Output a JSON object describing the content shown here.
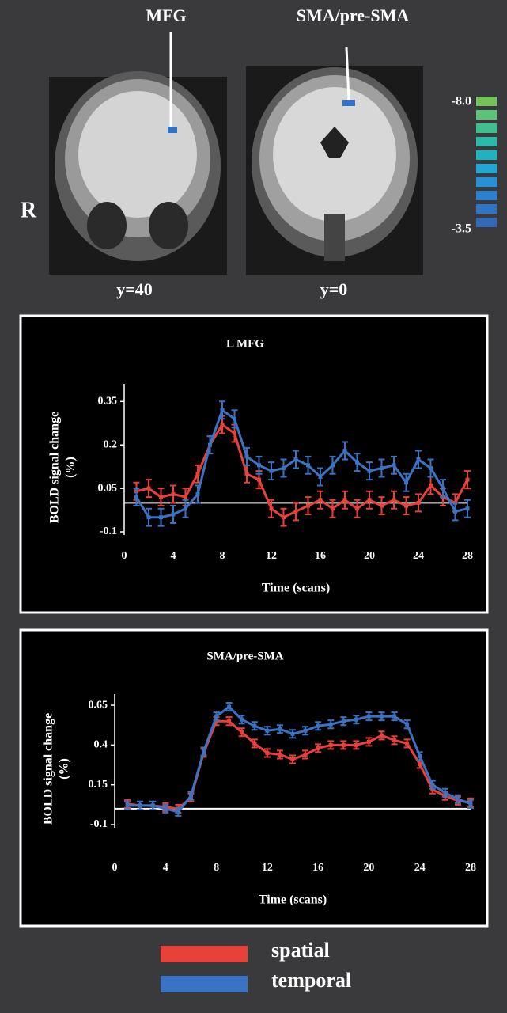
{
  "panel_labels": {
    "mfg": "MFG",
    "sma": "SMA/pre-SMA",
    "side": "R",
    "slice1": "y=40",
    "slice2": "y=0"
  },
  "colorbar": {
    "max_label": "-8.0",
    "min_label": "-3.5",
    "colors": [
      "#72c45a",
      "#5cc47a",
      "#3fbf8f",
      "#2bb9a8",
      "#1fb3c2",
      "#22a6d6",
      "#2791d8",
      "#2d80d0",
      "#3174c4",
      "#3469b8"
    ]
  },
  "chart_data": [
    {
      "type": "line",
      "title": "L MFG",
      "ylabel": [
        "BOLD signal change",
        "(%)"
      ],
      "xlabel": "Time (scans)",
      "x": [
        1,
        2,
        3,
        4,
        5,
        6,
        7,
        8,
        9,
        10,
        11,
        12,
        13,
        14,
        15,
        16,
        17,
        18,
        19,
        20,
        21,
        22,
        23,
        24,
        25,
        26,
        27,
        28
      ],
      "xlim": [
        0,
        28
      ],
      "xticks": [
        0,
        4,
        8,
        12,
        16,
        20,
        24,
        28
      ],
      "ylim": [
        -0.1,
        0.4
      ],
      "yticks": [
        -0.1,
        0.05,
        0.2,
        0.35
      ],
      "reference_line": 0,
      "series": [
        {
          "name": "spatial",
          "color": "#e8413a",
          "values": [
            0.04,
            0.05,
            0.02,
            0.03,
            0.02,
            0.1,
            0.2,
            0.27,
            0.24,
            0.1,
            0.08,
            -0.02,
            -0.05,
            -0.03,
            -0.01,
            0.01,
            -0.02,
            0.01,
            -0.02,
            0.01,
            -0.01,
            0.01,
            -0.01,
            0.0,
            0.06,
            0.02,
            0.0,
            0.08
          ],
          "errors": [
            0.03,
            0.03,
            0.03,
            0.03,
            0.03,
            0.03,
            0.03,
            0.03,
            0.03,
            0.03,
            0.03,
            0.03,
            0.03,
            0.03,
            0.03,
            0.03,
            0.03,
            0.03,
            0.03,
            0.03,
            0.03,
            0.03,
            0.03,
            0.03,
            0.03,
            0.03,
            0.03,
            0.03
          ]
        },
        {
          "name": "temporal",
          "color": "#3a73c4",
          "values": [
            0.02,
            -0.05,
            -0.05,
            -0.04,
            -0.02,
            0.03,
            0.2,
            0.32,
            0.29,
            0.16,
            0.13,
            0.11,
            0.12,
            0.15,
            0.13,
            0.09,
            0.13,
            0.18,
            0.14,
            0.11,
            0.12,
            0.13,
            0.07,
            0.15,
            0.12,
            0.05,
            -0.03,
            -0.02
          ],
          "errors": [
            0.03,
            0.03,
            0.03,
            0.03,
            0.03,
            0.03,
            0.03,
            0.03,
            0.03,
            0.03,
            0.03,
            0.03,
            0.03,
            0.03,
            0.03,
            0.03,
            0.03,
            0.03,
            0.03,
            0.03,
            0.03,
            0.03,
            0.03,
            0.03,
            0.03,
            0.03,
            0.03,
            0.03
          ]
        }
      ]
    },
    {
      "type": "line",
      "title": "SMA/pre-SMA",
      "ylabel": [
        "BOLD signal change",
        "(%)"
      ],
      "xlabel": "Time (scans)",
      "x": [
        1,
        2,
        3,
        4,
        5,
        6,
        7,
        8,
        9,
        10,
        11,
        12,
        13,
        14,
        15,
        16,
        17,
        18,
        19,
        20,
        21,
        22,
        23,
        24,
        25,
        26,
        27,
        28
      ],
      "xlim": [
        0,
        28
      ],
      "xticks": [
        0,
        4,
        8,
        12,
        16,
        20,
        24,
        28
      ],
      "ylim": [
        -0.1,
        0.7
      ],
      "yticks": [
        -0.1,
        0.15,
        0.4,
        0.65
      ],
      "reference_line": 0,
      "series": [
        {
          "name": "spatial",
          "color": "#e8413a",
          "values": [
            0.03,
            0.02,
            0.02,
            0.01,
            0.0,
            0.07,
            0.35,
            0.55,
            0.55,
            0.48,
            0.41,
            0.35,
            0.34,
            0.31,
            0.34,
            0.38,
            0.4,
            0.4,
            0.4,
            0.42,
            0.46,
            0.43,
            0.41,
            0.28,
            0.12,
            0.08,
            0.05,
            0.04
          ],
          "errors": [
            0.025,
            0.025,
            0.025,
            0.025,
            0.025,
            0.025,
            0.025,
            0.025,
            0.025,
            0.025,
            0.025,
            0.025,
            0.025,
            0.025,
            0.025,
            0.025,
            0.025,
            0.025,
            0.025,
            0.025,
            0.025,
            0.025,
            0.025,
            0.025,
            0.025,
            0.025,
            0.025,
            0.025
          ]
        },
        {
          "name": "temporal",
          "color": "#3a73c4",
          "values": [
            0.02,
            0.02,
            0.02,
            0.0,
            -0.02,
            0.08,
            0.36,
            0.58,
            0.64,
            0.56,
            0.52,
            0.49,
            0.5,
            0.47,
            0.49,
            0.52,
            0.53,
            0.55,
            0.56,
            0.58,
            0.58,
            0.58,
            0.53,
            0.33,
            0.15,
            0.1,
            0.06,
            0.03
          ],
          "errors": [
            0.025,
            0.025,
            0.025,
            0.025,
            0.025,
            0.025,
            0.025,
            0.025,
            0.025,
            0.025,
            0.025,
            0.025,
            0.025,
            0.025,
            0.025,
            0.025,
            0.025,
            0.025,
            0.025,
            0.025,
            0.025,
            0.025,
            0.025,
            0.025,
            0.025,
            0.025,
            0.025,
            0.025
          ]
        }
      ]
    }
  ]
}
